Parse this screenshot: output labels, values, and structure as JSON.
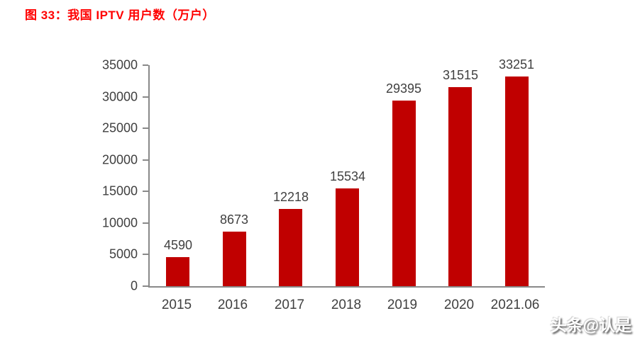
{
  "header": {
    "title": "图 33：我国 IPTV 用户数（万户）"
  },
  "watermark": {
    "text": "头条@认是"
  },
  "colors": {
    "title_red": "#ff0000",
    "bar_red": "#c00000",
    "axis_gray": "#898989",
    "label_gray": "#404040",
    "watermark_white": "#ffffff"
  },
  "chart_data": {
    "type": "bar",
    "title": "图 33：我国 IPTV 用户数（万户）",
    "categories": [
      "2015",
      "2016",
      "2017",
      "2018",
      "2019",
      "2020",
      "2021.06"
    ],
    "values": [
      4590,
      8673,
      12218,
      15534,
      29395,
      31515,
      33251
    ],
    "xlabel": "",
    "ylabel": "",
    "ylim": [
      0,
      35000
    ],
    "ytick_step": 5000,
    "ytick_labels": [
      "0",
      "5000",
      "10000",
      "15000",
      "20000",
      "25000",
      "30000",
      "35000"
    ],
    "grid": false,
    "legend_position": "none",
    "bar_color": "#c00000",
    "value_labels_shown": true
  }
}
